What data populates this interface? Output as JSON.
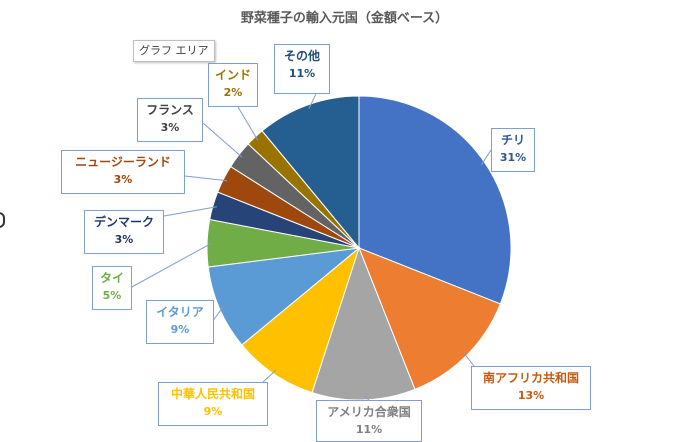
{
  "chart_data": {
    "type": "pie",
    "title": "野菜種子の輸入元国（金額ベース）",
    "tooltip": "グラフ エリア",
    "slices": [
      {
        "name": "チリ",
        "value": 31,
        "label": "31%",
        "color": "#4472c4",
        "text_color": "#2f5597"
      },
      {
        "name": "南アフリカ共和国",
        "value": 13,
        "label": "13%",
        "color": "#ed7d31",
        "text_color": "#c55a11"
      },
      {
        "name": "アメリカ合衆国",
        "value": 11,
        "label": "11%",
        "color": "#a5a5a5",
        "text_color": "#7f7f7f"
      },
      {
        "name": "中華人民共和国",
        "value": 9,
        "label": "9%",
        "color": "#ffc000",
        "text_color": "#ffc000"
      },
      {
        "name": "イタリア",
        "value": 9,
        "label": "9%",
        "color": "#5b9bd5",
        "text_color": "#5b9bd5"
      },
      {
        "name": "タイ",
        "value": 5,
        "label": "5%",
        "color": "#70ad47",
        "text_color": "#70ad47"
      },
      {
        "name": "デンマーク",
        "value": 3,
        "label": "3%",
        "color": "#264478",
        "text_color": "#1f3864"
      },
      {
        "name": "ニュージーランド",
        "value": 3,
        "label": "3%",
        "color": "#9e480e",
        "text_color": "#9e480e"
      },
      {
        "name": "フランス",
        "value": 3,
        "label": "3%",
        "color": "#636363",
        "text_color": "#404040"
      },
      {
        "name": "インド",
        "value": 2,
        "label": "2%",
        "color": "#997300",
        "text_color": "#997300"
      },
      {
        "name": "その他",
        "value": 11,
        "label": "11%",
        "color": "#255e91",
        "text_color": "#1f4e79"
      }
    ]
  }
}
